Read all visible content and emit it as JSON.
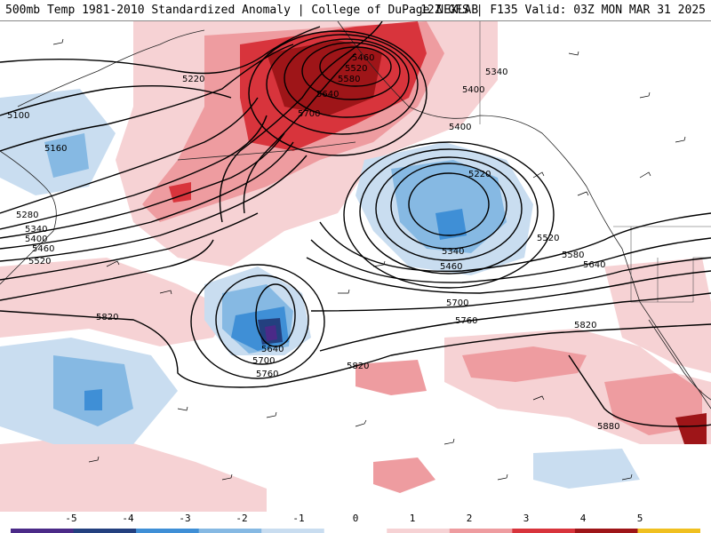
{
  "header": {
    "title_left": "500mb Temp 1981-2010 Standardized Anomaly | College of DuPage NEXLAB",
    "title_right": "12Z GFS | F135 Valid: 03Z MON MAR 31 2025"
  },
  "colorbar": {
    "labels": [
      "-5",
      "-4",
      "-3",
      "-2",
      "-1",
      "0",
      "1",
      "2",
      "3",
      "4",
      "5"
    ],
    "colors": [
      "#4b2a88",
      "#23407f",
      "#3f8fd6",
      "#86b9e3",
      "#c9ddf0",
      "#ffffff",
      "#f6d2d4",
      "#ee9ca0",
      "#d8343c",
      "#9e1518",
      "#f0c020"
    ]
  },
  "contours": [
    {
      "id": "c5100",
      "label": "5100"
    },
    {
      "id": "c5160",
      "label": "5160"
    },
    {
      "id": "c5220",
      "label": "5220"
    },
    {
      "id": "c5280",
      "label": "5280"
    },
    {
      "id": "c5340",
      "label": "5340"
    },
    {
      "id": "c5400",
      "label": "5400"
    },
    {
      "id": "c5460",
      "label": "5460"
    },
    {
      "id": "c5520",
      "label": "5520"
    },
    {
      "id": "c5580",
      "label": "5580"
    },
    {
      "id": "c5640",
      "label": "5640"
    },
    {
      "id": "c5700",
      "label": "5700"
    },
    {
      "id": "c5760",
      "label": "5760"
    },
    {
      "id": "c5820",
      "label": "5820"
    },
    {
      "id": "c5880",
      "label": "5880"
    }
  ],
  "map": {
    "field": "500mb height contours, temperature anomaly shading, wind barbs",
    "region": "North Pacific"
  }
}
